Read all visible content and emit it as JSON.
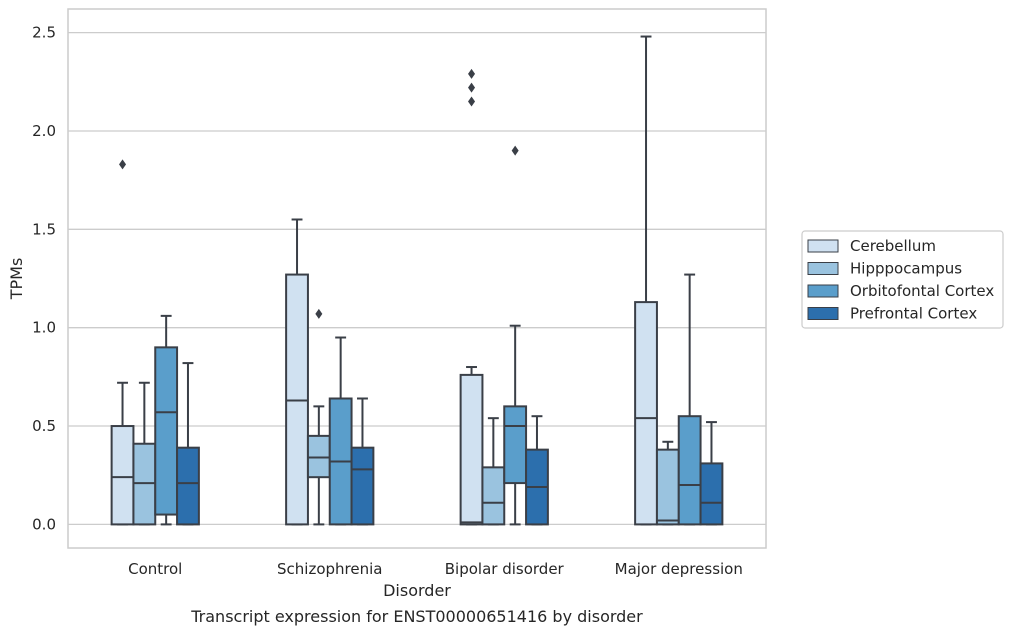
{
  "chart_data": {
    "type": "box",
    "title": "",
    "caption": "Transcript expression for ENST00000651416 by disorder",
    "xlabel": "Disorder",
    "ylabel": "TPMs",
    "ylim": [
      -0.12,
      2.62
    ],
    "yticks": [
      0.0,
      0.5,
      1.0,
      1.5,
      2.0,
      2.5
    ],
    "ytick_labels": [
      "0.0",
      "0.5",
      "1.0",
      "1.5",
      "2.0",
      "2.5"
    ],
    "grid": "horizontal",
    "legend_position": "right",
    "categories": [
      "Control",
      "Schizophrenia",
      "Bipolar disorder",
      "Major depression"
    ],
    "series": [
      {
        "name": "Cerebellum",
        "color": "#d0e1f1",
        "boxes": [
          {
            "whisker_low": 0.0,
            "q1": 0.0,
            "median": 0.24,
            "q3": 0.5,
            "whisker_high": 0.72,
            "outliers": [
              1.83
            ]
          },
          {
            "whisker_low": 0.0,
            "q1": 0.0,
            "median": 0.63,
            "q3": 1.27,
            "whisker_high": 1.55,
            "outliers": []
          },
          {
            "whisker_low": 0.0,
            "q1": 0.0,
            "median": 0.01,
            "q3": 0.76,
            "whisker_high": 0.8,
            "outliers": [
              2.15,
              2.22,
              2.29
            ]
          },
          {
            "whisker_low": 0.0,
            "q1": 0.0,
            "median": 0.54,
            "q3": 1.13,
            "whisker_high": 2.48,
            "outliers": []
          }
        ]
      },
      {
        "name": "Hipppocampus",
        "color": "#9ac3df",
        "boxes": [
          {
            "whisker_low": 0.0,
            "q1": 0.0,
            "median": 0.21,
            "q3": 0.41,
            "whisker_high": 0.72,
            "outliers": []
          },
          {
            "whisker_low": 0.0,
            "q1": 0.24,
            "median": 0.34,
            "q3": 0.45,
            "whisker_high": 0.6,
            "outliers": [
              1.07
            ]
          },
          {
            "whisker_low": 0.0,
            "q1": 0.0,
            "median": 0.11,
            "q3": 0.29,
            "whisker_high": 0.54,
            "outliers": []
          },
          {
            "whisker_low": 0.0,
            "q1": 0.0,
            "median": 0.02,
            "q3": 0.38,
            "whisker_high": 0.42,
            "outliers": []
          }
        ]
      },
      {
        "name": "Orbitofontal Cortex",
        "color": "#5a9ecb",
        "boxes": [
          {
            "whisker_low": 0.0,
            "q1": 0.05,
            "median": 0.57,
            "q3": 0.9,
            "whisker_high": 1.06,
            "outliers": []
          },
          {
            "whisker_low": 0.0,
            "q1": 0.0,
            "median": 0.32,
            "q3": 0.64,
            "whisker_high": 0.95,
            "outliers": []
          },
          {
            "whisker_low": 0.0,
            "q1": 0.21,
            "median": 0.5,
            "q3": 0.6,
            "whisker_high": 1.01,
            "outliers": [
              1.9
            ]
          },
          {
            "whisker_low": 0.0,
            "q1": 0.0,
            "median": 0.2,
            "q3": 0.55,
            "whisker_high": 1.27,
            "outliers": []
          }
        ]
      },
      {
        "name": "Prefrontal Cortex",
        "color": "#2c6fad",
        "boxes": [
          {
            "whisker_low": 0.0,
            "q1": 0.0,
            "median": 0.21,
            "q3": 0.39,
            "whisker_high": 0.82,
            "outliers": []
          },
          {
            "whisker_low": 0.0,
            "q1": 0.0,
            "median": 0.28,
            "q3": 0.39,
            "whisker_high": 0.64,
            "outliers": []
          },
          {
            "whisker_low": 0.0,
            "q1": 0.0,
            "median": 0.19,
            "q3": 0.38,
            "whisker_high": 0.55,
            "outliers": []
          },
          {
            "whisker_low": 0.0,
            "q1": 0.0,
            "median": 0.11,
            "q3": 0.31,
            "whisker_high": 0.52,
            "outliers": []
          }
        ]
      }
    ]
  }
}
